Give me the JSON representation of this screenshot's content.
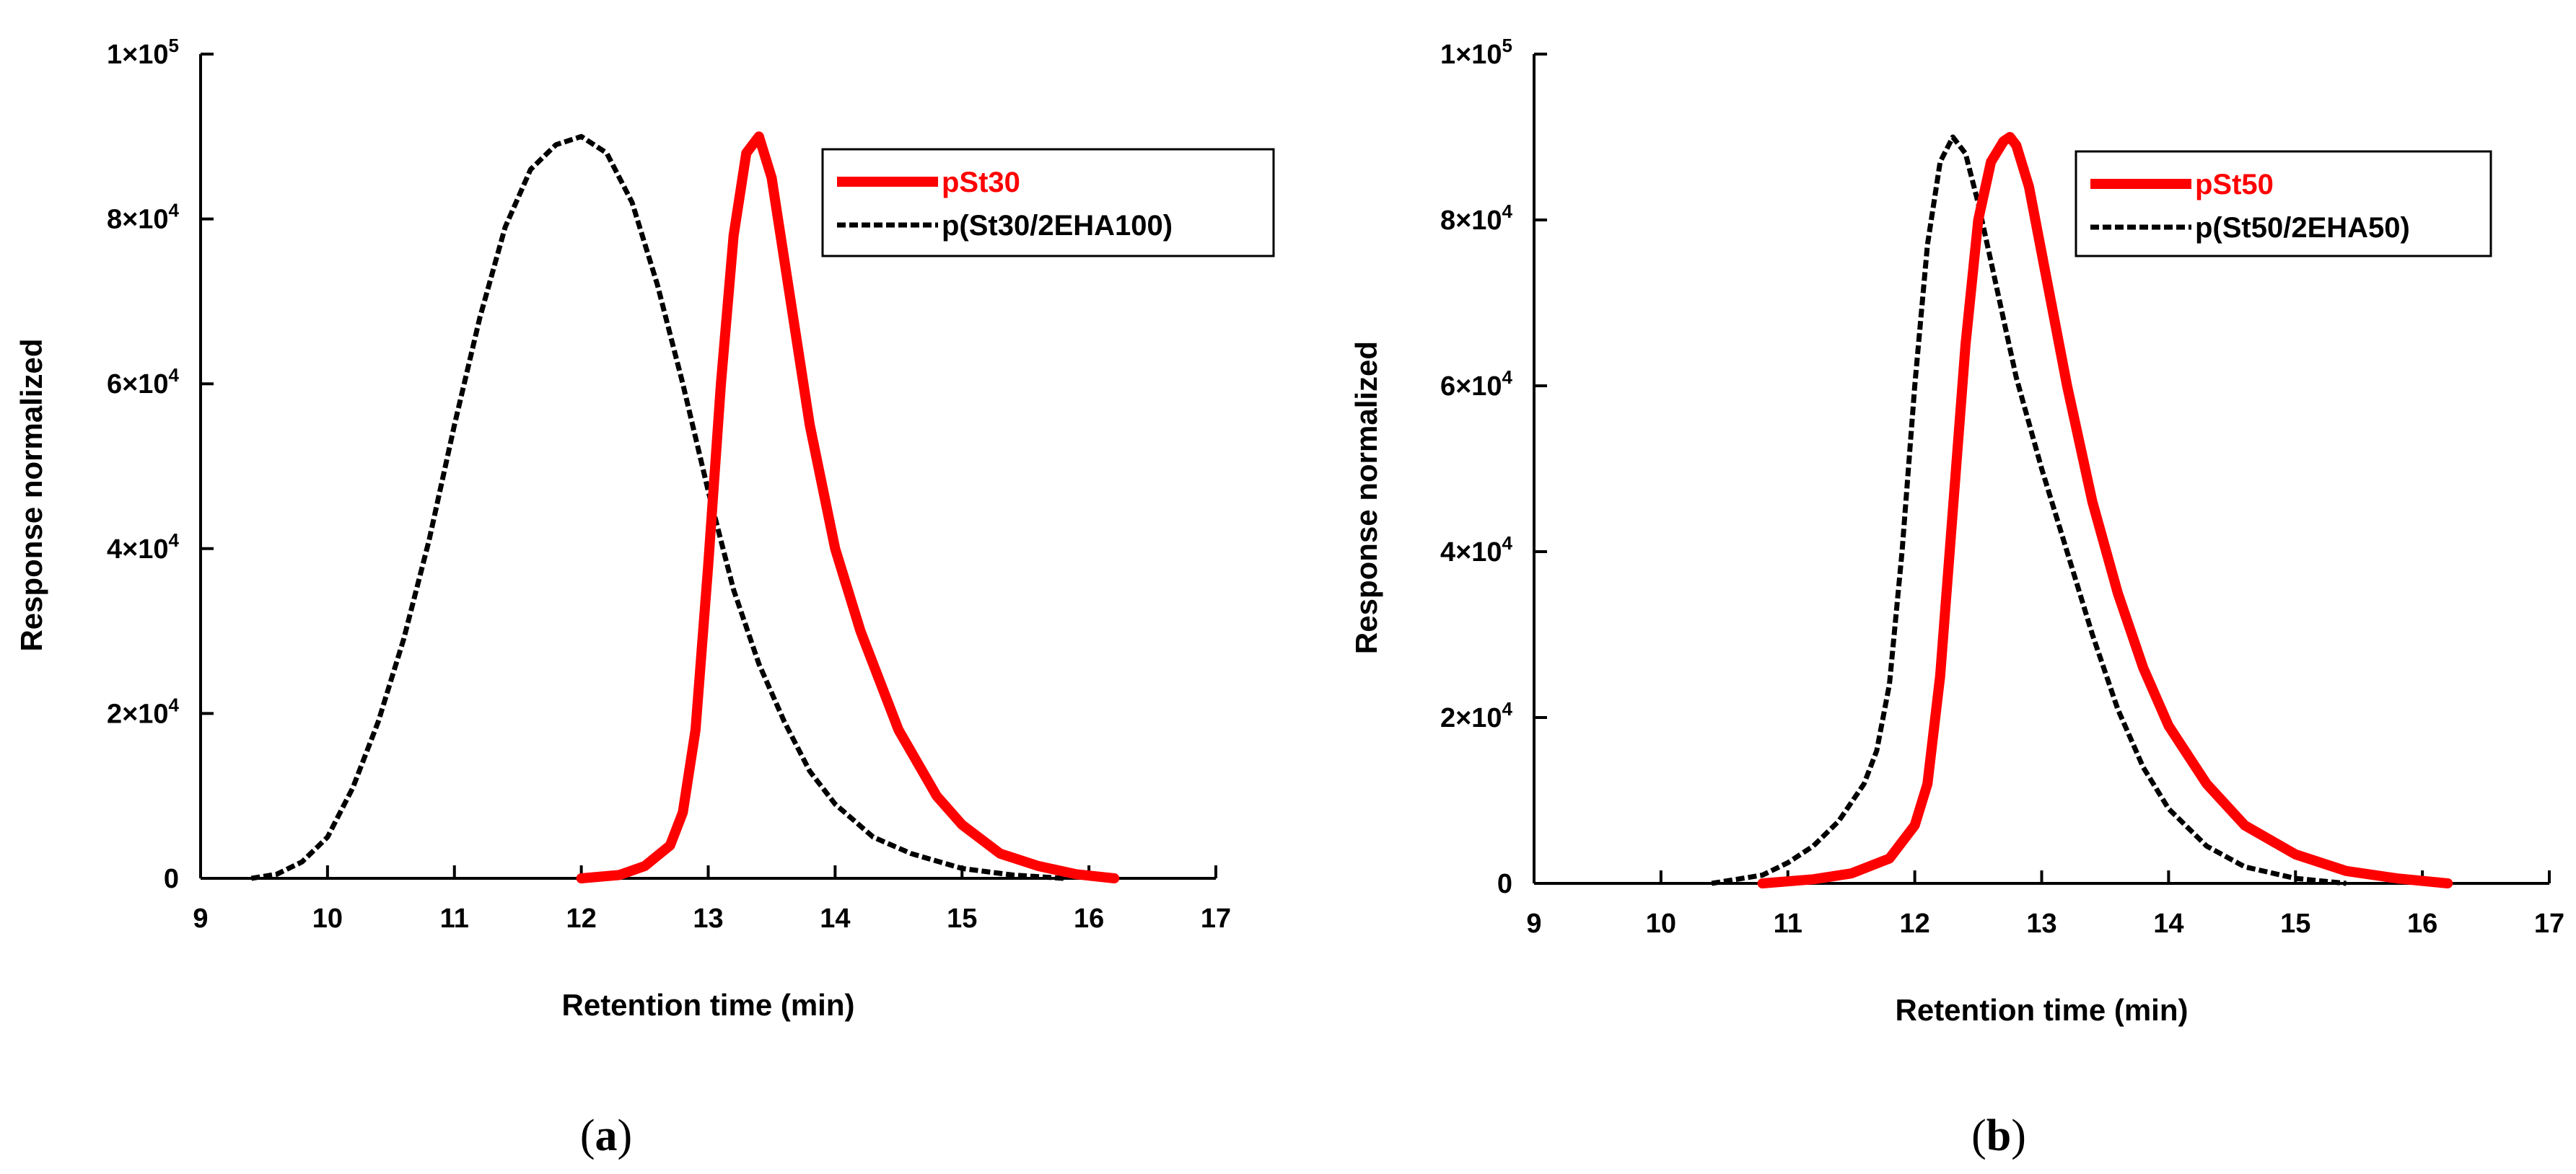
{
  "chart_data": [
    {
      "type": "line",
      "panel_label": "a",
      "caption": {
        "open": "(",
        "letter": "a",
        "close": ")"
      },
      "xlabel": "Retention time (min)",
      "ylabel": "Response normalized",
      "xlim": [
        9,
        17
      ],
      "ylim": [
        0,
        100000
      ],
      "x_ticks": [
        "9",
        "10",
        "11",
        "12",
        "13",
        "14",
        "15",
        "16",
        "17"
      ],
      "y_ticks": [
        {
          "mant": "0",
          "exp": ""
        },
        {
          "mant": "2×10",
          "exp": "4"
        },
        {
          "mant": "4×10",
          "exp": "4"
        },
        {
          "mant": "6×10",
          "exp": "4"
        },
        {
          "mant": "8×10",
          "exp": "4"
        },
        {
          "mant": "1×10",
          "exp": "5"
        }
      ],
      "legend_position": "top-right",
      "series": [
        {
          "name": "pSt30",
          "color": "#ff0000",
          "style": "solid",
          "x": [
            12.0,
            12.3,
            12.5,
            12.7,
            12.8,
            12.9,
            13.0,
            13.1,
            13.2,
            13.3,
            13.4,
            13.5,
            13.6,
            13.7,
            13.8,
            14.0,
            14.2,
            14.5,
            14.8,
            15.0,
            15.3,
            15.6,
            15.9,
            16.2
          ],
          "y": [
            0,
            400,
            1500,
            4000,
            8000,
            18000,
            38000,
            60000,
            78000,
            88000,
            90000,
            85000,
            75000,
            65000,
            55000,
            40000,
            30000,
            18000,
            10000,
            6500,
            3000,
            1500,
            500,
            0
          ]
        },
        {
          "name": "p(St30/2EHA100)",
          "color": "#000000",
          "style": "dashed",
          "x": [
            9.4,
            9.6,
            9.8,
            10.0,
            10.2,
            10.4,
            10.6,
            10.8,
            11.0,
            11.2,
            11.4,
            11.6,
            11.8,
            12.0,
            12.2,
            12.4,
            12.6,
            12.8,
            13.0,
            13.2,
            13.4,
            13.6,
            13.8,
            14.0,
            14.3,
            14.6,
            15.0,
            15.4,
            15.8
          ],
          "y": [
            0,
            500,
            2000,
            5000,
            11000,
            19000,
            29000,
            41000,
            55000,
            68000,
            79000,
            86000,
            89000,
            90000,
            88000,
            82000,
            72000,
            60000,
            47000,
            35000,
            26000,
            19000,
            13000,
            9000,
            5000,
            3000,
            1200,
            400,
            0
          ]
        }
      ]
    },
    {
      "type": "line",
      "panel_label": "b",
      "caption": {
        "open": "(",
        "letter": "b",
        "close": ")"
      },
      "xlabel": "Retention time (min)",
      "ylabel": "Response normalized",
      "xlim": [
        9,
        17
      ],
      "ylim": [
        0,
        100000
      ],
      "x_ticks": [
        "9",
        "10",
        "11",
        "12",
        "13",
        "14",
        "15",
        "16",
        "17"
      ],
      "y_ticks": [
        {
          "mant": "0",
          "exp": ""
        },
        {
          "mant": "2×10",
          "exp": "4"
        },
        {
          "mant": "4×10",
          "exp": "4"
        },
        {
          "mant": "6×10",
          "exp": "4"
        },
        {
          "mant": "8×10",
          "exp": "4"
        },
        {
          "mant": "1×10",
          "exp": "5"
        }
      ],
      "legend_position": "top-right",
      "series": [
        {
          "name": "pSt50",
          "color": "#ff0000",
          "style": "solid",
          "x": [
            10.8,
            11.2,
            11.5,
            11.8,
            12.0,
            12.1,
            12.2,
            12.3,
            12.4,
            12.5,
            12.6,
            12.7,
            12.75,
            12.8,
            12.9,
            13.0,
            13.2,
            13.4,
            13.6,
            13.8,
            14.0,
            14.3,
            14.6,
            15.0,
            15.4,
            15.8,
            16.2
          ],
          "y": [
            0,
            500,
            1200,
            3000,
            7000,
            12000,
            25000,
            45000,
            65000,
            80000,
            87000,
            89500,
            90000,
            89000,
            84000,
            76000,
            60000,
            46000,
            35000,
            26000,
            19000,
            12000,
            7000,
            3500,
            1500,
            600,
            0
          ]
        },
        {
          "name": "p(St50/2EHA50)",
          "color": "#000000",
          "style": "dashed",
          "x": [
            10.4,
            10.8,
            11.0,
            11.2,
            11.4,
            11.6,
            11.7,
            11.8,
            11.9,
            12.0,
            12.1,
            12.2,
            12.3,
            12.4,
            12.5,
            12.6,
            12.7,
            12.8,
            13.0,
            13.2,
            13.4,
            13.6,
            13.8,
            14.0,
            14.3,
            14.6,
            15.0,
            15.4
          ],
          "y": [
            0,
            1000,
            2500,
            4500,
            7500,
            12000,
            16000,
            24000,
            40000,
            60000,
            77000,
            87000,
            90000,
            88000,
            82000,
            75000,
            68000,
            61000,
            50000,
            40000,
            30000,
            21000,
            14000,
            9000,
            4500,
            2000,
            600,
            0
          ]
        }
      ]
    }
  ]
}
